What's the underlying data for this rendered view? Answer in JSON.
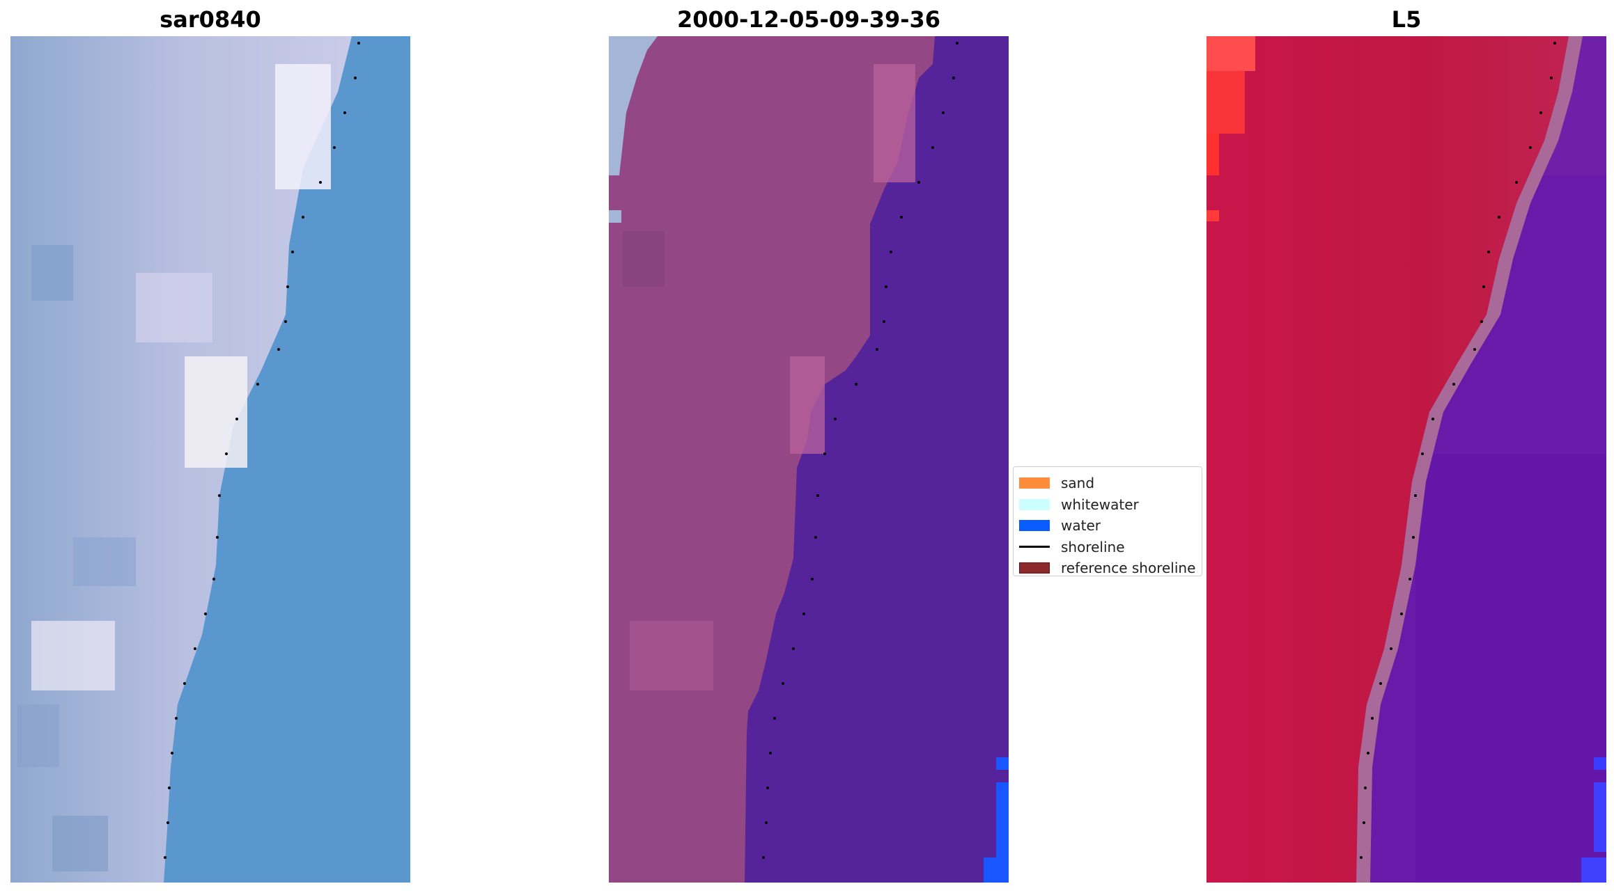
{
  "panels": [
    {
      "title": "sar0840"
    },
    {
      "title": "2000-12-05-09-39-36"
    },
    {
      "title": "L5"
    }
  ],
  "legend": {
    "items": [
      {
        "label": "sand",
        "color": "#ff8c3a",
        "kind": "patch"
      },
      {
        "label": "whitewater",
        "color": "#ccffff",
        "kind": "patch"
      },
      {
        "label": "water",
        "color": "#0a5cff",
        "kind": "patch"
      },
      {
        "label": "shoreline",
        "color": "#000000",
        "kind": "line"
      },
      {
        "label": "reference shoreline",
        "color": "#8b2a2a",
        "kind": "patch"
      }
    ]
  },
  "colors": {
    "rgb_land": "#a8b4d8",
    "rgb_water": "#5b97cf",
    "classified_land": "#934784",
    "classified_water": "#55249b",
    "classified_water_blue": "#1a56ff",
    "falsecolor_land": "#c8164a",
    "falsecolor_water": "#6a1aa8",
    "shoreline_points": "#000000"
  }
}
